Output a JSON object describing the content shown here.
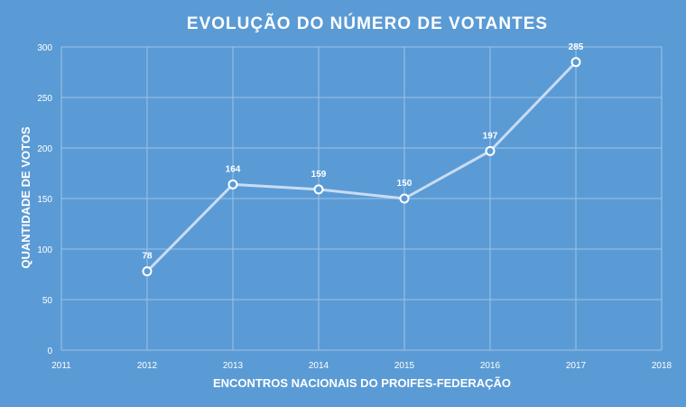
{
  "chart_data": {
    "type": "line",
    "title": "EVOLUÇÃO DO NÚMERO DE VOTANTES",
    "xlabel": "ENCONTROS NACIONAIS DO PROIFES-FEDERAÇÃO",
    "ylabel": "QUANTIDADE DE VOTOS",
    "x": [
      2012,
      2013,
      2014,
      2015,
      2016,
      2017
    ],
    "series": [
      {
        "values": [
          78,
          164,
          159,
          150,
          197,
          285
        ]
      }
    ],
    "data_labels": [
      "78",
      "164",
      "159",
      "150",
      "197",
      "285"
    ],
    "xlim": [
      2011,
      2018
    ],
    "ylim": [
      0,
      300
    ],
    "x_ticks": [
      "2011",
      "2012",
      "2013",
      "2014",
      "2015",
      "2016",
      "2017",
      "2018"
    ],
    "y_ticks": [
      "0",
      "50",
      "100",
      "150",
      "200",
      "250",
      "300"
    ],
    "grid": true,
    "legend": "none",
    "colors": {
      "background": "#5B9BD5",
      "line": "#C9DCF2",
      "marker_fill": "#5B9BD5",
      "marker_stroke": "#FFFFFF",
      "grid": "#9DC3E6",
      "text": "#FFFFFF"
    }
  }
}
